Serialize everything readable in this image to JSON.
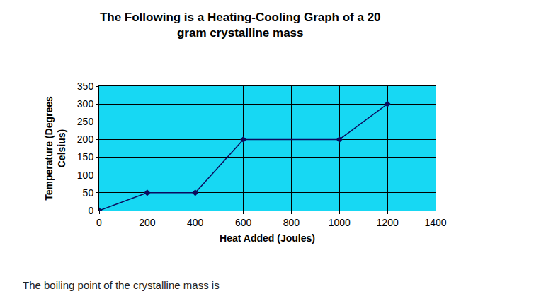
{
  "chart_data": {
    "type": "line",
    "title": "The Following is a Heating-Cooling Graph of a 20\ngram crystalline mass",
    "x_label": "Heat Added (Joules)",
    "y_label": "Temperature (Degrees\nCelsius)",
    "x": [
      0,
      200,
      400,
      600,
      1000,
      1200
    ],
    "values": [
      0,
      50,
      50,
      200,
      200,
      300
    ],
    "color": "#0b0b5e",
    "marker": "diamond",
    "xlim": [
      0,
      1400
    ],
    "xticks": [
      0,
      200,
      400,
      600,
      800,
      1000,
      1200,
      1400
    ],
    "ylim": [
      0,
      350
    ],
    "yticks": [
      0,
      50,
      100,
      150,
      200,
      250,
      300,
      350
    ],
    "grid": true,
    "annotations": [
      "The boiling point of the crystalline mass is"
    ]
  }
}
